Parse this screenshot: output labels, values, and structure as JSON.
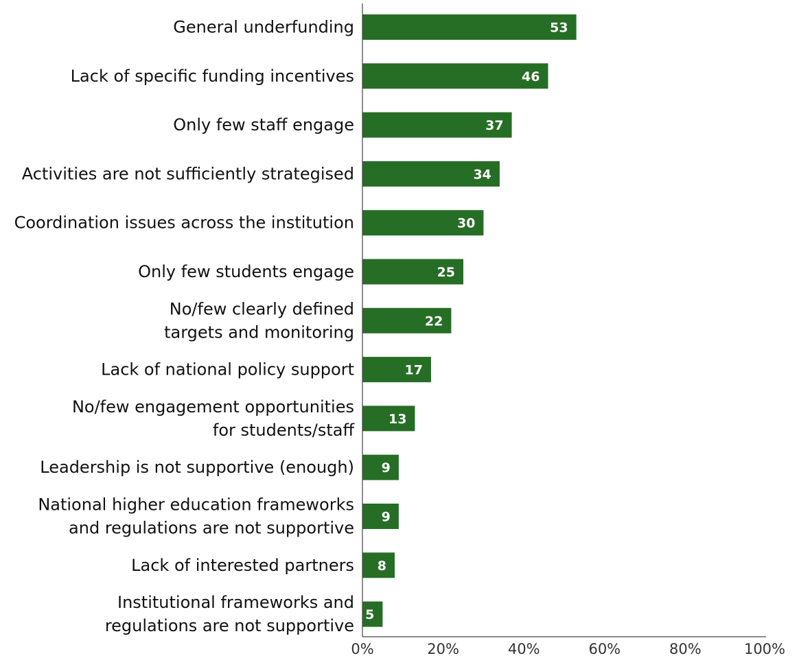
{
  "chart_data": {
    "type": "bar",
    "orientation": "horizontal",
    "categories": [
      [
        "General underfunding"
      ],
      [
        "Lack of specific funding incentives"
      ],
      [
        "Only few staff engage"
      ],
      [
        "Activities are not sufficiently strategised"
      ],
      [
        "Coordination issues across the institution"
      ],
      [
        "Only few students engage"
      ],
      [
        "No/few clearly defined",
        "targets and monitoring"
      ],
      [
        "Lack of national policy support"
      ],
      [
        "No/few engagement opportunities",
        "for students/staff"
      ],
      [
        "Leadership is not supportive (enough)"
      ],
      [
        "National higher education frameworks",
        "and regulations are not supportive"
      ],
      [
        "Lack of interested partners"
      ],
      [
        "Institutional frameworks and",
        "regulations are not supportive"
      ]
    ],
    "values": [
      53,
      46,
      37,
      34,
      30,
      25,
      22,
      17,
      13,
      9,
      9,
      8,
      5
    ],
    "xlim": [
      0,
      100
    ],
    "xticks": [
      0,
      20,
      40,
      60,
      80,
      100
    ],
    "tick_suffix": "%",
    "grid": false,
    "bar_color": "#266e25",
    "value_label_color": "#ffffff"
  }
}
